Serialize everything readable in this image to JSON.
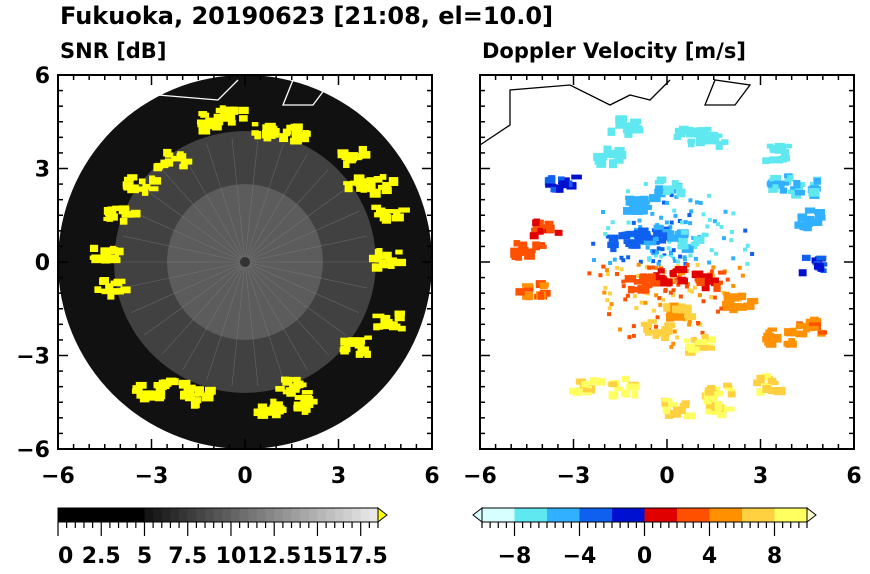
{
  "chart_data": [
    {
      "type": "heatmap",
      "suptitle": "Fukuoka, 20190623 [21:08, el=10.0]",
      "title": "SNR [dB]",
      "xlim": [
        -6,
        6
      ],
      "ylim": [
        -6,
        6
      ],
      "xticks": [
        "−6",
        "−3",
        "0",
        "3",
        "6"
      ],
      "yticks": [
        "6",
        "3",
        "0",
        "−3",
        "−6"
      ],
      "range_ring_max": 6,
      "colorbar": {
        "min": 0,
        "max": 18.5,
        "step": 0.5,
        "ticks": [
          "0",
          "2.5",
          "5",
          "7.5",
          "10",
          "12.5",
          "15",
          "17.5"
        ],
        "extend": "max",
        "over_color": "#ffff00"
      },
      "echoes": [
        {
          "x": -1.2,
          "y": 4.6,
          "v": 20
        },
        {
          "x": -0.6,
          "y": 4.8,
          "v": 20
        },
        {
          "x": 0.6,
          "y": 4.3,
          "v": 20
        },
        {
          "x": 1.5,
          "y": 4.2,
          "v": 20
        },
        {
          "x": 3.3,
          "y": 3.5,
          "v": 20
        },
        {
          "x": 3.6,
          "y": 2.6,
          "v": 20
        },
        {
          "x": 4.3,
          "y": 2.6,
          "v": 20
        },
        {
          "x": 4.5,
          "y": 1.6,
          "v": 20
        },
        {
          "x": 4.4,
          "y": 0.2,
          "v": 20
        },
        {
          "x": 4.5,
          "y": -1.8,
          "v": 20
        },
        {
          "x": 3.4,
          "y": -2.6,
          "v": 20
        },
        {
          "x": 1.4,
          "y": -3.9,
          "v": 20
        },
        {
          "x": 0.6,
          "y": -4.6,
          "v": 20
        },
        {
          "x": 1.8,
          "y": -4.5,
          "v": 20
        },
        {
          "x": -1.6,
          "y": -4.2,
          "v": 20
        },
        {
          "x": -2.4,
          "y": -3.9,
          "v": 20
        },
        {
          "x": -3.3,
          "y": -4.0,
          "v": 20
        },
        {
          "x": -4.4,
          "y": -0.7,
          "v": 20
        },
        {
          "x": -4.6,
          "y": 0.4,
          "v": 20
        },
        {
          "x": -4.1,
          "y": 1.6,
          "v": 20
        },
        {
          "x": -3.5,
          "y": 2.6,
          "v": 20
        },
        {
          "x": -2.5,
          "y": 3.4,
          "v": 20
        }
      ]
    },
    {
      "type": "heatmap",
      "title": "Doppler Velocity [m/s]",
      "xlim": [
        -6,
        6
      ],
      "ylim": [
        -6,
        6
      ],
      "xticks": [
        "−6",
        "−3",
        "0",
        "3",
        "6"
      ],
      "yticks": [
        "6",
        "3",
        "0",
        "−3",
        "−6"
      ],
      "colorbar": {
        "min": -10,
        "max": 10,
        "ticks": [
          "−8",
          "−4",
          "0",
          "4",
          "8"
        ],
        "extend": "both"
      },
      "echoes": [
        {
          "x": -1.5,
          "y": 4.5,
          "v": -7
        },
        {
          "x": 0.6,
          "y": 4.2,
          "v": -7
        },
        {
          "x": 1.3,
          "y": 4.1,
          "v": -7
        },
        {
          "x": 3.3,
          "y": 3.6,
          "v": -7
        },
        {
          "x": 3.6,
          "y": 2.6,
          "v": -6
        },
        {
          "x": 4.3,
          "y": 2.5,
          "v": -6
        },
        {
          "x": 4.4,
          "y": 1.5,
          "v": -5
        },
        {
          "x": 4.5,
          "y": 0.0,
          "v": -2
        },
        {
          "x": -2.1,
          "y": 3.5,
          "v": -7
        },
        {
          "x": -3.5,
          "y": 2.6,
          "v": -2
        },
        {
          "x": -4.0,
          "y": 1.2,
          "v": 2
        },
        {
          "x": -4.6,
          "y": 0.5,
          "v": 3
        },
        {
          "x": -4.5,
          "y": -0.8,
          "v": 4
        },
        {
          "x": -1.0,
          "y": 2.0,
          "v": -5
        },
        {
          "x": 0.0,
          "y": 2.5,
          "v": -6
        },
        {
          "x": -0.5,
          "y": 1.0,
          "v": -4
        },
        {
          "x": 0.4,
          "y": 0.8,
          "v": -6
        },
        {
          "x": -1.5,
          "y": 0.8,
          "v": -3
        },
        {
          "x": 0.0,
          "y": -0.3,
          "v": 1
        },
        {
          "x": -1.0,
          "y": -0.6,
          "v": 3
        },
        {
          "x": 1.2,
          "y": -0.5,
          "v": 2
        },
        {
          "x": 0.2,
          "y": -1.5,
          "v": 6
        },
        {
          "x": 0.8,
          "y": -2.5,
          "v": 8
        },
        {
          "x": -0.5,
          "y": -2.0,
          "v": 7
        },
        {
          "x": 2.2,
          "y": -1.2,
          "v": 5
        },
        {
          "x": 3.5,
          "y": -2.3,
          "v": 5
        },
        {
          "x": 4.5,
          "y": -2.0,
          "v": 4
        },
        {
          "x": 3.0,
          "y": -3.8,
          "v": 8
        },
        {
          "x": 1.5,
          "y": -4.0,
          "v": 8
        },
        {
          "x": -1.5,
          "y": -3.9,
          "v": 8
        },
        {
          "x": -2.7,
          "y": -3.9,
          "v": 8
        },
        {
          "x": 0.2,
          "y": -4.6,
          "v": 8
        },
        {
          "x": 1.5,
          "y": -4.5,
          "v": 8
        }
      ]
    }
  ]
}
